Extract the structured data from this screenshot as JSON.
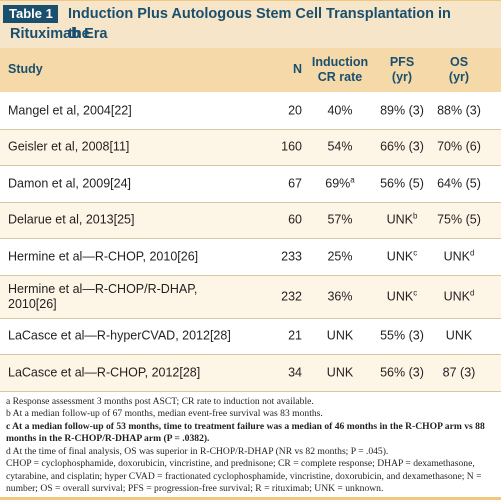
{
  "table": {
    "label": "Table 1",
    "title_line1": "Induction Plus Autologous Stem Cell Transplantation in the",
    "title_line2": "Rituximab Era"
  },
  "headers": {
    "study": "Study",
    "n": "N",
    "cr_line1": "Induction",
    "cr_line2": "CR rate",
    "pfs_line1": "PFS",
    "pfs_line2": "(yr)",
    "os_line1": "OS",
    "os_line2": "(yr)"
  },
  "rows": [
    {
      "study": "Mangel et al, 2004[22]",
      "n": "20",
      "cr": "40%",
      "cr_sup": "",
      "pfs": "89% (3)",
      "pfs_sup": "",
      "os": "88% (3)",
      "os_sup": ""
    },
    {
      "study": "Geisler et al, 2008[11]",
      "n": "160",
      "cr": "54%",
      "cr_sup": "",
      "pfs": "66% (3)",
      "pfs_sup": "",
      "os": "70% (6)",
      "os_sup": ""
    },
    {
      "study": "Damon et al, 2009[24]",
      "n": "67",
      "cr": "69%",
      "cr_sup": "a",
      "pfs": "56% (5)",
      "pfs_sup": "",
      "os": "64% (5)",
      "os_sup": ""
    },
    {
      "study": "Delarue et al, 2013[25]",
      "n": "60",
      "cr": "57%",
      "cr_sup": "",
      "pfs": "UNK",
      "pfs_sup": "b",
      "os": "75% (5)",
      "os_sup": ""
    },
    {
      "study": "Hermine et al—R-CHOP, 2010[26]",
      "n": "233",
      "cr": "25%",
      "cr_sup": "",
      "pfs": "UNK",
      "pfs_sup": "c",
      "os": "UNK",
      "os_sup": "d"
    },
    {
      "study_line1": "Hermine et al—R-CHOP/R-DHAP,",
      "study_line2": "2010[26]",
      "n": "232",
      "cr": "36%",
      "cr_sup": "",
      "pfs": "UNK",
      "pfs_sup": "c",
      "os": "UNK",
      "os_sup": "d"
    },
    {
      "study": "LaCasce et al—R-hyperCVAD, 2012[28]",
      "n": "21",
      "cr": "UNK",
      "cr_sup": "",
      "pfs": "55% (3)",
      "pfs_sup": "",
      "os": "UNK",
      "os_sup": ""
    },
    {
      "study": "LaCasce et al—R-CHOP, 2012[28]",
      "n": "34",
      "cr": "UNK",
      "cr_sup": "",
      "pfs": "56% (3)",
      "pfs_sup": "",
      "os": "87 (3)",
      "os_sup": ""
    }
  ],
  "notes": {
    "a": "a Response assessment 3 months post ASCT; CR rate to induction not available.",
    "b": "b At a median follow-up of 67 months, median event-free survival was 83 months.",
    "c": "c At a median follow-up of 53 months, time to treatment failure was a median of 46 months in the R-CHOP arm vs 88 months in the R-CHOP/R-DHAP arm (P = .0382).",
    "d": "d At the time of final analysis, OS was superior in R-CHOP/R-DHAP (NR vs 82 months; P = .045).",
    "abbrev": "CHOP = cyclophosphamide, doxorubicin, vincristine, and prednisone; CR = complete response; DHAP = dexamethasone, cytarabine, and cisplatin; hyper CVAD = fractionated cyclophosphamide, vincristine, doxorubicin, and dexamethasone; N = number; OS = overall survival; PFS = progression-free survival; R = rituximab; UNK = unknown."
  },
  "colors": {
    "title_bg": "#f6e5c9",
    "header_bg": "#f5d9a8",
    "label_bg": "#1a4f6e",
    "accent_text": "#1a4f6e",
    "alt_row_bg": "#fdf5e6"
  }
}
